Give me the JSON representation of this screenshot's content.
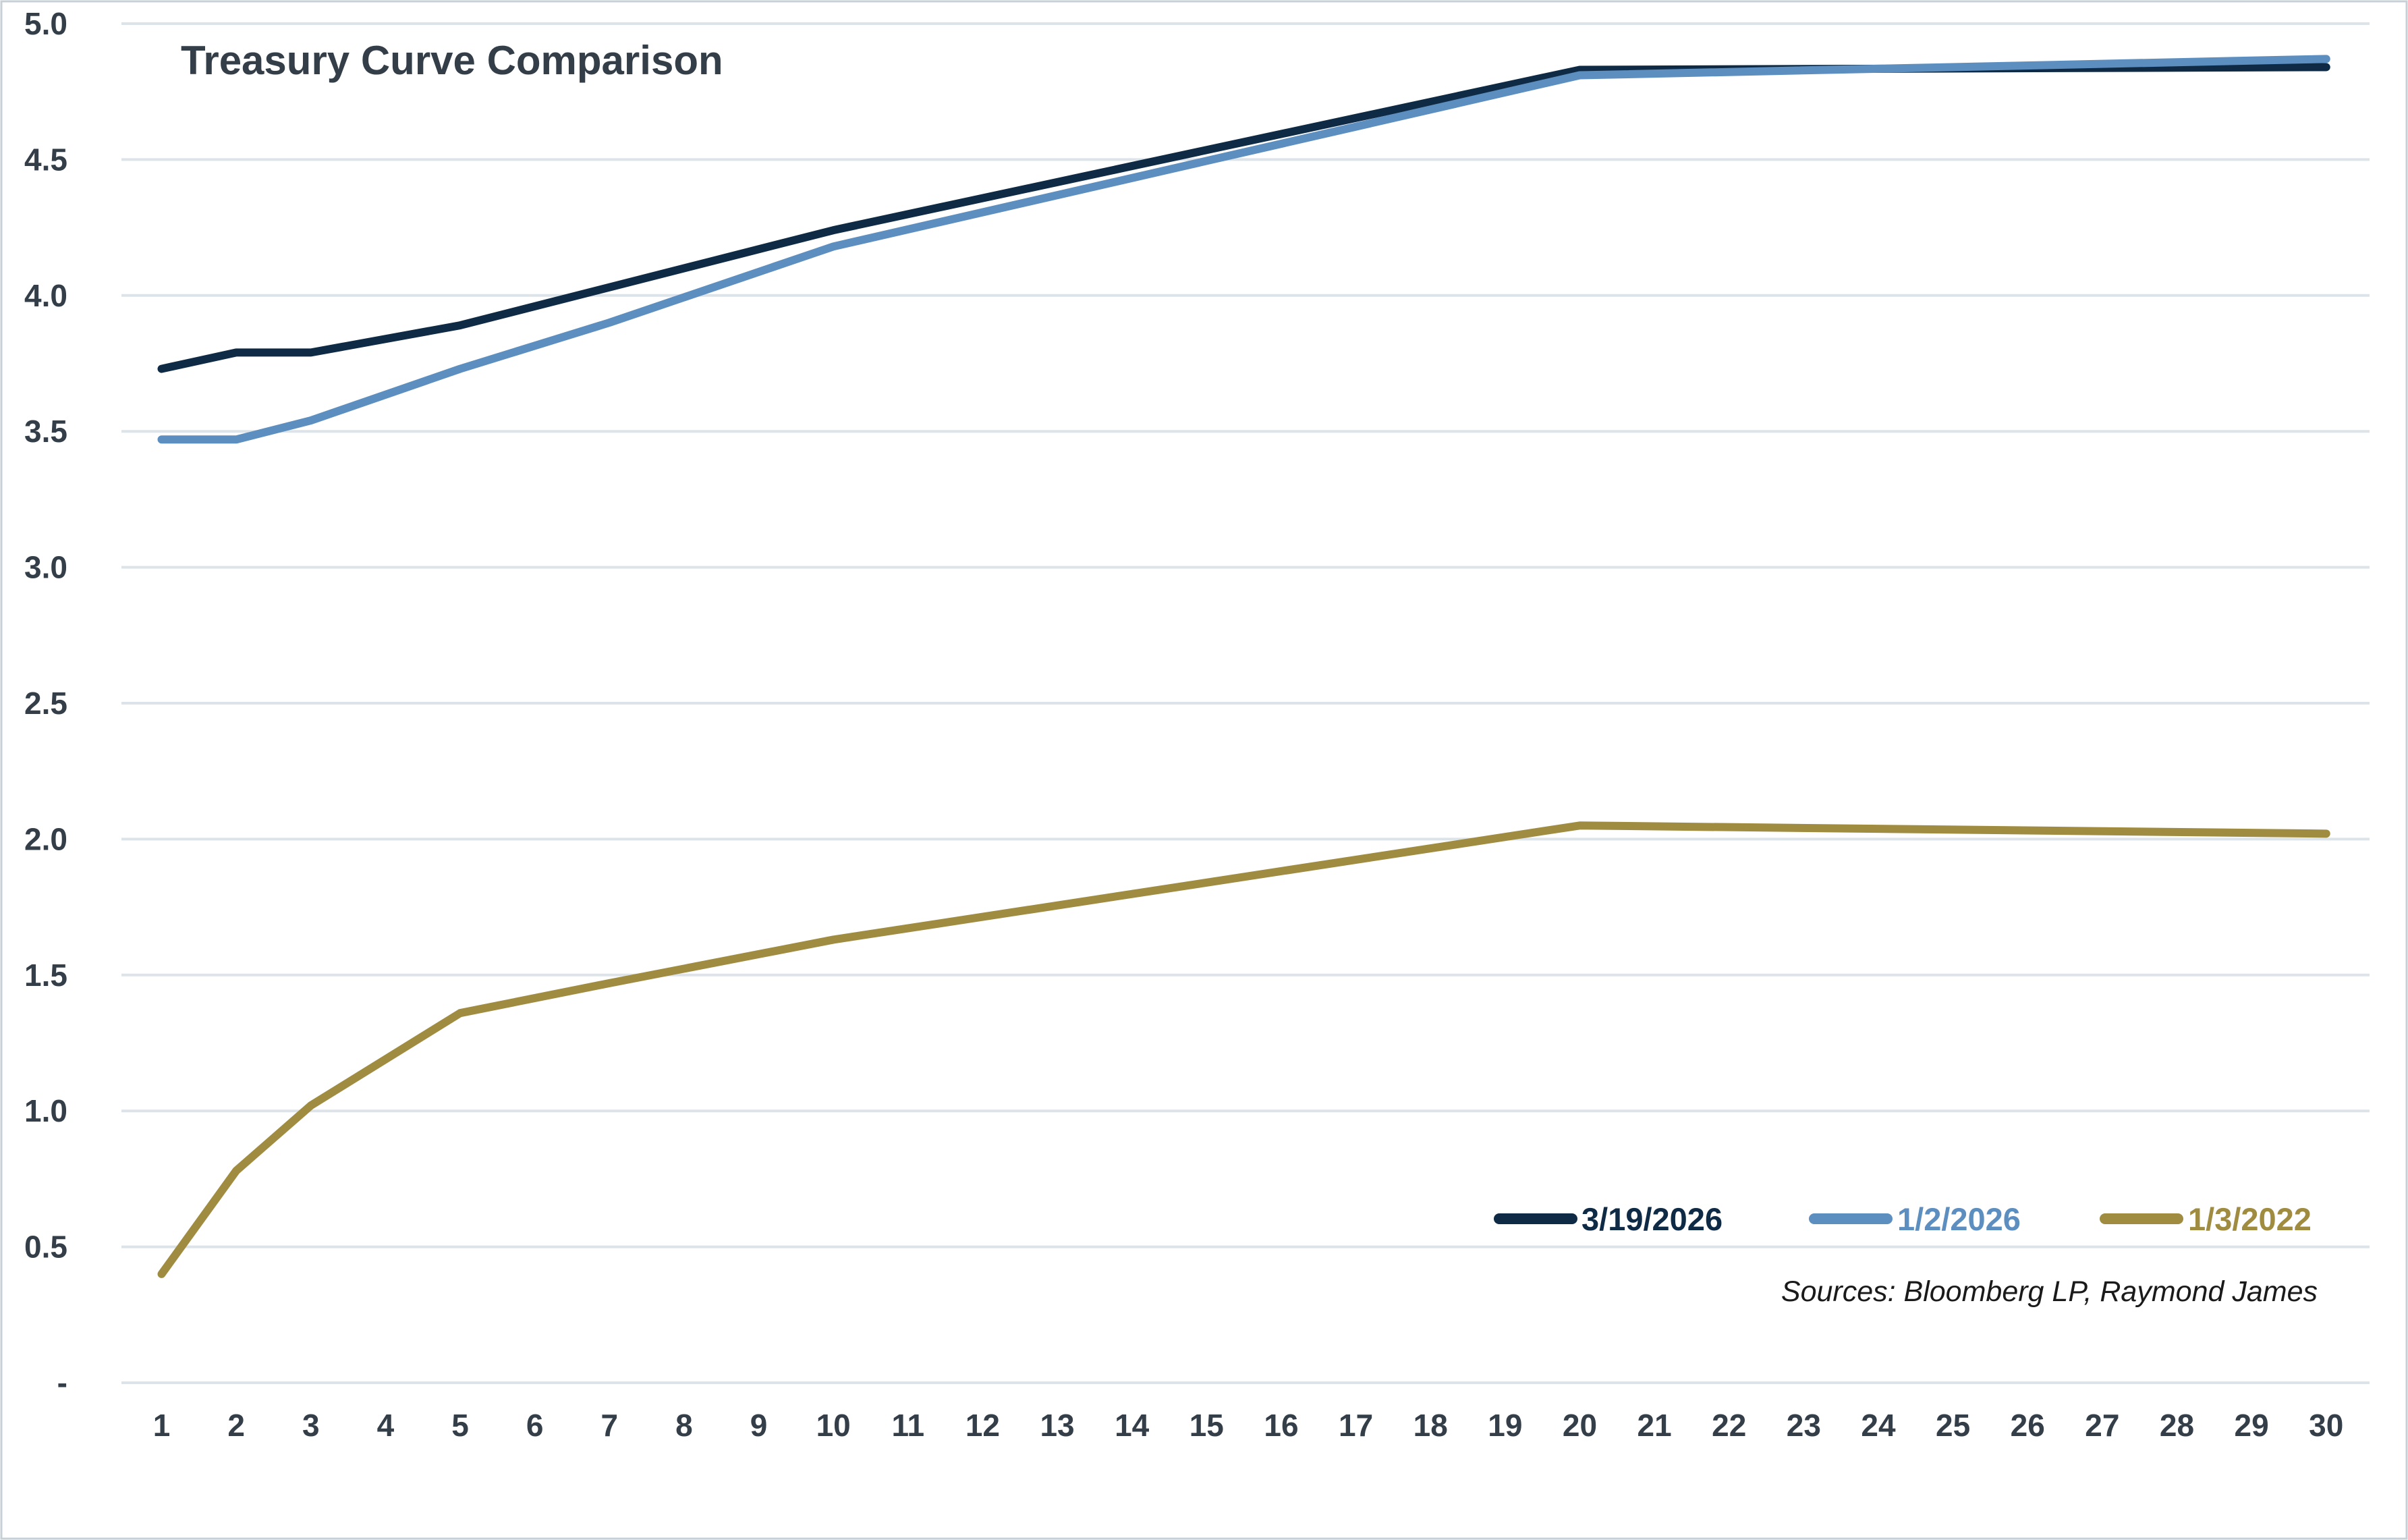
{
  "title": "Treasury Curve Comparison",
  "footer": {
    "sources": "Sources: Bloomberg LP, Raymond James"
  },
  "legend": {
    "items": [
      {
        "label": "3/19/2026"
      },
      {
        "label": "1/2/2026"
      },
      {
        "label": "1/3/2022"
      }
    ]
  },
  "chart_data": {
    "type": "line",
    "title": "Treasury Curve Comparison",
    "xlabel": "",
    "ylabel": "",
    "x_range": [
      1,
      30
    ],
    "x_ticks": [
      1,
      2,
      3,
      4,
      5,
      6,
      7,
      8,
      9,
      10,
      11,
      12,
      13,
      14,
      15,
      16,
      17,
      18,
      19,
      20,
      21,
      22,
      23,
      24,
      25,
      26,
      27,
      28,
      29,
      30
    ],
    "y_range": [
      0,
      5
    ],
    "y_tick_values": [
      0,
      0.5,
      1.0,
      1.5,
      2.0,
      2.5,
      3.0,
      3.5,
      4.0,
      4.5,
      5.0
    ],
    "y_tick_labels": [
      "-",
      "0.5",
      "1.0",
      "1.5",
      "2.0",
      "2.5",
      "3.0",
      "3.5",
      "4.0",
      "4.5",
      "5.0"
    ],
    "grid": "horizontal-only",
    "legend_position": "inside-bottom-right",
    "series": [
      {
        "name": "3/19/2026",
        "color": "#0e2a45",
        "points": [
          [
            1,
            3.73
          ],
          [
            2,
            3.79
          ],
          [
            3,
            3.79
          ],
          [
            5,
            3.89
          ],
          [
            7,
            4.03
          ],
          [
            10,
            4.24
          ],
          [
            20,
            4.83
          ],
          [
            30,
            4.84
          ]
        ]
      },
      {
        "name": "1/2/2026",
        "color": "#5d8ec0",
        "points": [
          [
            1,
            3.47
          ],
          [
            2,
            3.47
          ],
          [
            3,
            3.54
          ],
          [
            5,
            3.73
          ],
          [
            7,
            3.9
          ],
          [
            10,
            4.18
          ],
          [
            20,
            4.81
          ],
          [
            30,
            4.87
          ]
        ]
      },
      {
        "name": "1/3/2022",
        "color": "#a08c40",
        "points": [
          [
            1,
            0.4
          ],
          [
            2,
            0.78
          ],
          [
            3,
            1.02
          ],
          [
            5,
            1.36
          ],
          [
            7,
            1.47
          ],
          [
            10,
            1.63
          ],
          [
            20,
            2.05
          ],
          [
            30,
            2.02
          ]
        ]
      }
    ],
    "style": {
      "line_width": 12,
      "grid_color": "#dde4e9",
      "tick_label_color": "#333e48",
      "title_color": "#333e48",
      "sources_color": "#1a1a1a",
      "border_color": "#c7d0d6",
      "background": "#ffffff"
    }
  }
}
